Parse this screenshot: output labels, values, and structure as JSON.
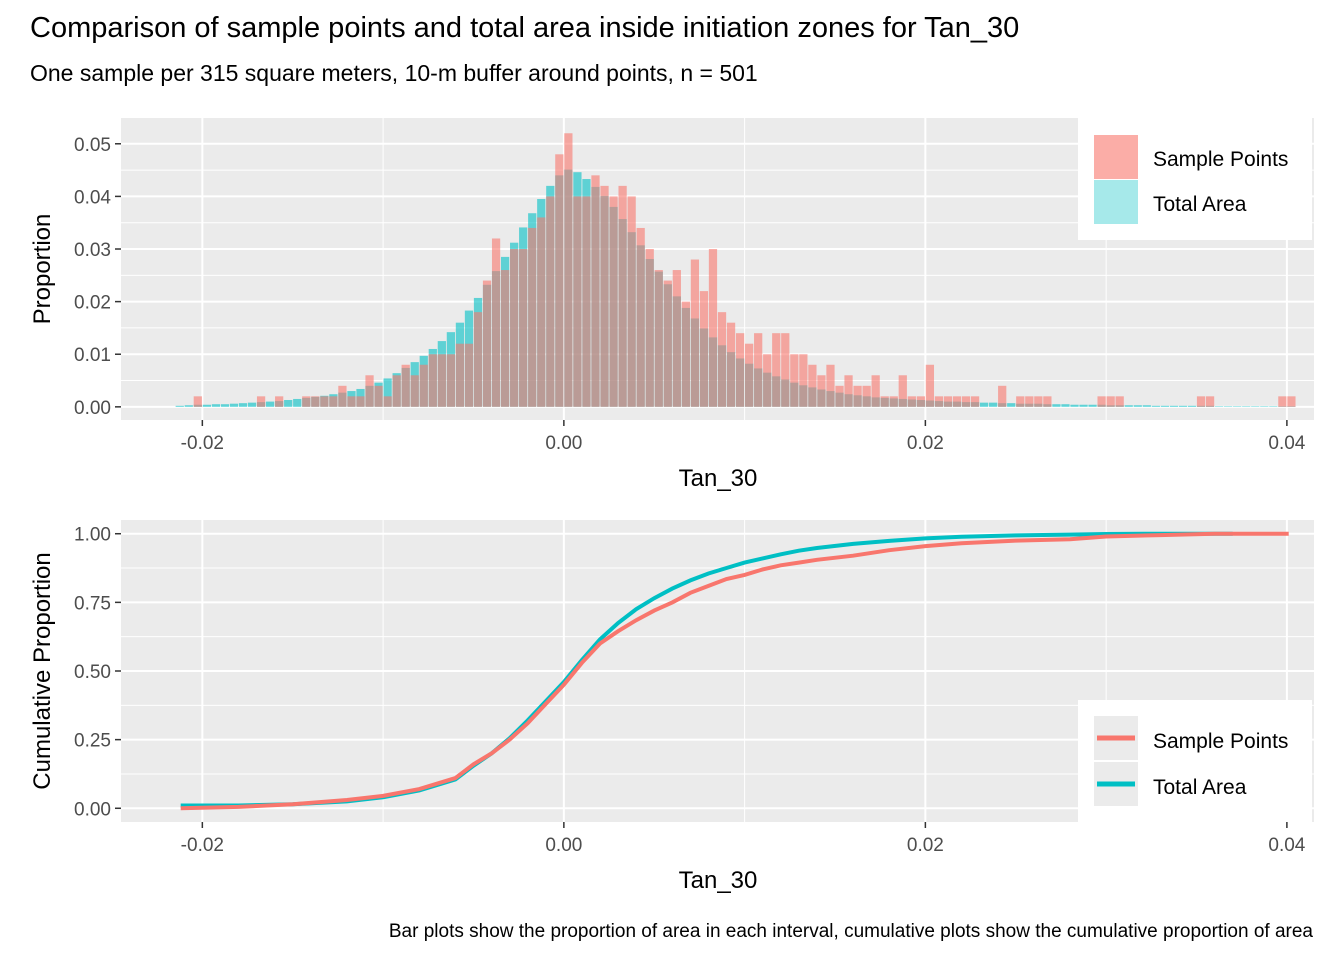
{
  "header": {
    "title": "Comparison of sample points and total area inside initiation zones for Tan_30",
    "subtitle": "One sample per 315 square meters, 10-m buffer around points, n = 501"
  },
  "caption": "Bar plots show the proportion of area in each interval, cumulative plots show the cumulative proportion of area",
  "colors": {
    "sample": "#F8766D",
    "total": "#00BFC4",
    "panel": "#EBEBEB",
    "grid": "#FFFFFF"
  },
  "chart_data": [
    {
      "type": "bar",
      "title": "",
      "xlabel": "Tan_30",
      "ylabel": "Proportion",
      "xlim": [
        -0.0245,
        0.0415
      ],
      "ylim": [
        -0.0025,
        0.0549
      ],
      "x_ticks": [
        {
          "value": -0.02,
          "label": "-0.02"
        },
        {
          "value": 0,
          "label": "0.00"
        },
        {
          "value": 0.02,
          "label": "0.02"
        },
        {
          "value": 0.04,
          "label": "0.04"
        }
      ],
      "y_ticks": [
        {
          "value": 0,
          "label": "0.00"
        },
        {
          "value": 0.01,
          "label": "0.01"
        },
        {
          "value": 0.02,
          "label": "0.02"
        },
        {
          "value": 0.03,
          "label": "0.03"
        },
        {
          "value": 0.04,
          "label": "0.04"
        },
        {
          "value": 0.05,
          "label": "0.05"
        }
      ],
      "legend": "right-top",
      "bin_start": -0.0215,
      "bin_width": 0.0005,
      "series": [
        {
          "name": "Sample Points",
          "values": [
            0,
            0,
            0.002,
            0,
            0,
            0,
            0,
            0,
            0,
            0.002,
            0,
            0.002,
            0,
            0,
            0.002,
            0.002,
            0.002,
            0.002,
            0.004,
            0.002,
            0.002,
            0.006,
            0.004,
            0.002,
            0.006,
            0.008,
            0.006,
            0.008,
            0.01,
            0.01,
            0.01,
            0.012,
            0.012,
            0.018,
            0.024,
            0.032,
            0.026,
            0.03,
            0.03,
            0.034,
            0.036,
            0.04,
            0.048,
            0.052,
            0.04,
            0.04,
            0.044,
            0.042,
            0.04,
            0.042,
            0.04,
            0.034,
            0.03,
            0.026,
            0.024,
            0.026,
            0.02,
            0.028,
            0.022,
            0.03,
            0.018,
            0.016,
            0.014,
            0.012,
            0.014,
            0.01,
            0.014,
            0.014,
            0.01,
            0.01,
            0.008,
            0.006,
            0.008,
            0.004,
            0.006,
            0.004,
            0.004,
            0.006,
            0.002,
            0.002,
            0.006,
            0.002,
            0.002,
            0.008,
            0.002,
            0.002,
            0.002,
            0.002,
            0.002,
            0,
            0,
            0.004,
            0,
            0.002,
            0.002,
            0.002,
            0.002,
            0,
            0,
            0,
            0,
            0,
            0.002,
            0.002,
            0.002,
            0,
            0,
            0,
            0,
            0,
            0,
            0,
            0,
            0.002,
            0.002,
            0,
            0,
            0,
            0,
            0,
            0,
            0,
            0.002,
            0.002,
            0
          ],
          "note": ""
        },
        {
          "name": "Total Area",
          "values": [
            0.0002,
            0.0003,
            0.0004,
            0.0004,
            0.0005,
            0.0005,
            0.0006,
            0.0007,
            0.0008,
            0.0009,
            0.001,
            0.0011,
            0.0013,
            0.0015,
            0.0017,
            0.0019,
            0.0021,
            0.0024,
            0.0027,
            0.003,
            0.0034,
            0.004,
            0.0046,
            0.0054,
            0.0064,
            0.0074,
            0.0085,
            0.0097,
            0.011,
            0.0125,
            0.0142,
            0.016,
            0.0183,
            0.0207,
            0.0232,
            0.0258,
            0.0285,
            0.0312,
            0.0341,
            0.0368,
            0.0395,
            0.042,
            0.044,
            0.0451,
            0.0446,
            0.0433,
            0.0418,
            0.0401,
            0.038,
            0.0357,
            0.0332,
            0.0307,
            0.0281,
            0.0257,
            0.0233,
            0.021,
            0.0188,
            0.0168,
            0.0149,
            0.0132,
            0.0117,
            0.0104,
            0.0092,
            0.0082,
            0.0073,
            0.0065,
            0.0058,
            0.0052,
            0.0046,
            0.0041,
            0.0037,
            0.0033,
            0.003,
            0.0027,
            0.0024,
            0.0022,
            0.002,
            0.0018,
            0.0017,
            0.0016,
            0.0015,
            0.0014,
            0.0013,
            0.0012,
            0.0011,
            0.001,
            0.001,
            0.0009,
            0.0009,
            0.0008,
            0.0008,
            0.0007,
            0.0007,
            0.0006,
            0.0006,
            0.0006,
            0.0005,
            0.0005,
            0.0005,
            0.0004,
            0.0004,
            0.0004,
            0.0004,
            0.0003,
            0.0003,
            0.0003,
            0.0003,
            0.0003,
            0.0002,
            0.0002,
            0.0002,
            0.0002,
            0.0002,
            0.0002,
            0.0002,
            0.0001,
            0.0001,
            0.0001,
            0.0001,
            0.0001,
            0.0001,
            0.0001,
            0.0001,
            0.0001,
            0
          ],
          "note": ""
        }
      ]
    },
    {
      "type": "line",
      "title": "",
      "xlabel": "Tan_30",
      "ylabel": "Cumulative Proportion",
      "xlim": [
        -0.0245,
        0.0415
      ],
      "ylim": [
        -0.05,
        1.05
      ],
      "x_ticks": [
        {
          "value": -0.02,
          "label": "-0.02"
        },
        {
          "value": 0,
          "label": "0.00"
        },
        {
          "value": 0.02,
          "label": "0.02"
        },
        {
          "value": 0.04,
          "label": "0.04"
        }
      ],
      "y_ticks": [
        {
          "value": 0,
          "label": "0.00"
        },
        {
          "value": 0.25,
          "label": "0.25"
        },
        {
          "value": 0.5,
          "label": "0.50"
        },
        {
          "value": 0.75,
          "label": "0.75"
        },
        {
          "value": 1,
          "label": "1.00"
        }
      ],
      "legend": "right-bottom",
      "series": [
        {
          "name": "Sample Points",
          "x": [
            -0.0212,
            -0.018,
            -0.015,
            -0.012,
            -0.01,
            -0.008,
            -0.006,
            -0.005,
            -0.004,
            -0.003,
            -0.002,
            -0.001,
            0,
            0.001,
            0.002,
            0.003,
            0.004,
            0.005,
            0.006,
            0.007,
            0.008,
            0.009,
            0.01,
            0.011,
            0.012,
            0.013,
            0.014,
            0.016,
            0.018,
            0.02,
            0.022,
            0.025,
            0.028,
            0.03,
            0.033,
            0.036,
            0.0401
          ],
          "y": [
            0,
            0.005,
            0.015,
            0.03,
            0.045,
            0.07,
            0.11,
            0.16,
            0.2,
            0.25,
            0.31,
            0.38,
            0.45,
            0.53,
            0.6,
            0.645,
            0.685,
            0.72,
            0.75,
            0.785,
            0.81,
            0.835,
            0.85,
            0.87,
            0.885,
            0.895,
            0.905,
            0.92,
            0.94,
            0.955,
            0.965,
            0.975,
            0.98,
            0.99,
            0.995,
            1,
            1
          ]
        },
        {
          "name": "Total Area",
          "x": [
            -0.0212,
            -0.018,
            -0.015,
            -0.012,
            -0.01,
            -0.008,
            -0.006,
            -0.005,
            -0.004,
            -0.003,
            -0.002,
            -0.001,
            0,
            0.001,
            0.002,
            0.003,
            0.004,
            0.005,
            0.006,
            0.007,
            0.008,
            0.009,
            0.01,
            0.011,
            0.012,
            0.013,
            0.014,
            0.016,
            0.018,
            0.02,
            0.022,
            0.025,
            0.028,
            0.03,
            0.033,
            0.036,
            0.037
          ],
          "y": [
            0.01,
            0.01,
            0.015,
            0.025,
            0.04,
            0.065,
            0.105,
            0.155,
            0.2,
            0.255,
            0.32,
            0.39,
            0.46,
            0.54,
            0.615,
            0.675,
            0.725,
            0.765,
            0.8,
            0.83,
            0.855,
            0.875,
            0.895,
            0.91,
            0.925,
            0.938,
            0.948,
            0.963,
            0.974,
            0.983,
            0.989,
            0.994,
            0.997,
            0.999,
            1,
            1,
            1
          ]
        }
      ]
    }
  ]
}
